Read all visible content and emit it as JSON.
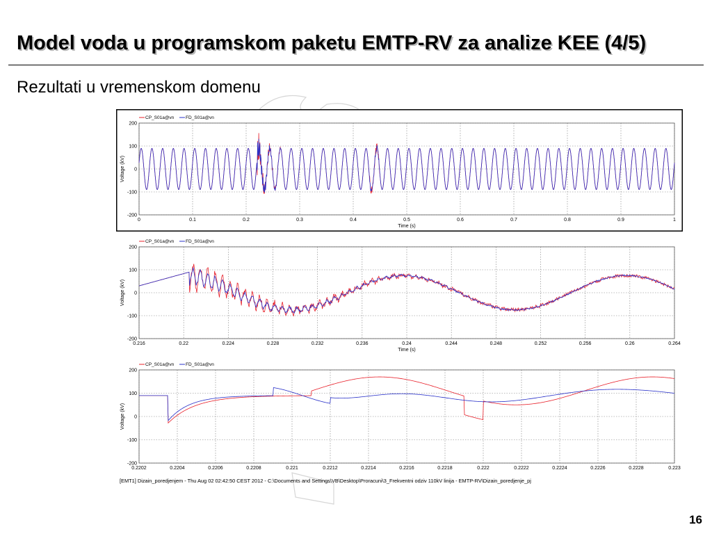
{
  "slide": {
    "title": "Model voda u programskom paketu EMTP-RV za analize KEE (4/5)",
    "subtitle": "Rezultati u vremenskom domenu",
    "page_number": "16",
    "footer_path": "[EMT1] Dizain_poredjenjem - Thu Aug 02 02:42:50 CEST 2012 - C:\\Documents and Settings\\VB\\Desktop\\Proracuni\\3_Frekventni odziv 110kV linija - EMTP-RV\\Dizain_poredjenje_pj"
  },
  "colors": {
    "cp_series": "#e8202a",
    "fd_series": "#2830c8",
    "grid": "#7a7a7a",
    "frame": "#000000"
  },
  "chart_data": [
    {
      "type": "line",
      "title": "",
      "xlabel": "Time (s)",
      "ylabel": "Voltage (kV)",
      "xlim": [
        0,
        1
      ],
      "ylim": [
        -200,
        200
      ],
      "x_ticks": [
        "0",
        "0.1",
        "0.2",
        "0.3",
        "0.4",
        "0.5",
        "0.6",
        "0.7",
        "0.8",
        "0.9",
        "1"
      ],
      "y_ticks": [
        "200",
        "100",
        "0",
        "-100",
        "-200"
      ],
      "legend": [
        "CP_S01a@vn",
        "FD_S01a@vn"
      ],
      "legend_position": "top-left",
      "grid": true,
      "series_summary": {
        "amplitude_kv": 90,
        "frequency_hz": 50,
        "disturbance_1_start_s": 0.22,
        "disturbance_2_start_s": 0.43
      }
    },
    {
      "type": "line",
      "title": "",
      "xlabel": "Time (s)",
      "ylabel": "Voltage (kV)",
      "xlim": [
        0.216,
        0.264
      ],
      "ylim": [
        -200,
        200
      ],
      "x_ticks": [
        "0.216",
        "0.22",
        "0.224",
        "0.228",
        "0.232",
        "0.236",
        "0.24",
        "0.244",
        "0.248",
        "0.252",
        "0.256",
        "0.26",
        "0.264"
      ],
      "y_ticks": [
        "200",
        "100",
        "0",
        "-100",
        "-200"
      ],
      "legend": [
        "CP_S01a@vn",
        "FD_S01a@vn"
      ],
      "legend_position": "top-left",
      "grid": true,
      "series_summary": {
        "amplitude_kv": 80,
        "switching_time_s": 0.2205
      }
    },
    {
      "type": "line",
      "title": "",
      "xlabel": "",
      "ylabel": "Voltage (kV)",
      "xlim": [
        0.2202,
        0.223
      ],
      "ylim": [
        -200,
        200
      ],
      "x_ticks": [
        "0.2202",
        "0.2204",
        "0.2206",
        "0.2208",
        "0.221",
        "0.2212",
        "0.2214",
        "0.2216",
        "0.2218",
        "0.222",
        "0.2222",
        "0.2224",
        "0.2226",
        "0.2228",
        "0.223"
      ],
      "y_ticks": [
        "200",
        "100",
        "0",
        "-100",
        "-200"
      ],
      "legend": [
        "CP_S01a@vn",
        "FD_S01a@vn"
      ],
      "legend_position": "top-left",
      "grid": true,
      "series_summary": {
        "switching_time_s": 0.22035,
        "initial_voltage_kv": 90
      }
    }
  ]
}
